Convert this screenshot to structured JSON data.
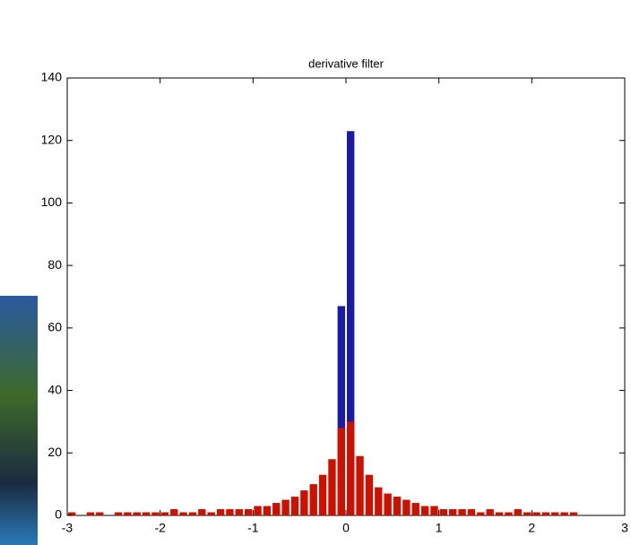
{
  "chart_data": {
    "type": "histogram",
    "title": "derivative  filter",
    "bins": [
      -3,
      -2.9,
      -2.8,
      -2.7,
      -2.6,
      -2.5,
      -2.4,
      -2.3,
      -2.2,
      -2.1,
      -2,
      -1.9,
      -1.8,
      -1.7,
      -1.6,
      -1.5,
      -1.4,
      -1.3,
      -1.2,
      -1.1,
      -1,
      -0.9,
      -0.8,
      -0.7,
      -0.6,
      -0.5,
      -0.4,
      -0.3,
      -0.2,
      -0.1,
      0,
      0.1,
      0.2,
      0.3,
      0.4,
      0.5,
      0.6,
      0.7,
      0.8,
      0.9,
      1,
      1.1,
      1.2,
      1.3,
      1.4,
      1.5,
      1.6,
      1.7,
      1.8,
      1.9,
      2,
      2.1,
      2.2,
      2.3,
      2.4,
      2.5,
      2.6,
      2.7,
      2.8,
      2.9,
      3
    ],
    "series": [
      {
        "color": "#1a1aa8",
        "values": [
          0,
          0,
          0,
          0,
          0,
          0,
          0,
          0,
          0,
          0,
          0,
          0,
          0,
          0,
          0,
          0,
          0,
          0,
          0,
          0,
          0,
          0,
          0,
          0,
          0,
          0,
          0,
          0,
          0,
          67,
          123,
          0,
          0,
          0,
          0,
          0,
          0,
          0,
          0,
          0,
          0,
          0,
          0,
          0,
          0,
          0,
          0,
          0,
          0,
          0,
          0,
          0,
          0,
          0,
          0,
          0,
          0,
          0,
          0,
          0
        ]
      },
      {
        "color": "#cc1100",
        "values": [
          1,
          0,
          1,
          1,
          0,
          1,
          1,
          1,
          1,
          1,
          1,
          2,
          1,
          1,
          2,
          1,
          2,
          2,
          2,
          2,
          3,
          3,
          4,
          5,
          6,
          8,
          10,
          13,
          18,
          28,
          30,
          19,
          13,
          9,
          7,
          6,
          5,
          4,
          3,
          3,
          2,
          2,
          2,
          2,
          1,
          2,
          1,
          1,
          2,
          1,
          1,
          1,
          1,
          1,
          1,
          0,
          0,
          0,
          0,
          0
        ]
      }
    ],
    "xlim": [
      -3,
      3
    ],
    "xticks": [
      -3,
      -2,
      -1,
      0,
      1,
      2,
      3
    ],
    "ylim": [
      0,
      140
    ],
    "yticks": [
      0,
      20,
      40,
      60,
      80,
      100,
      120,
      140
    ]
  }
}
